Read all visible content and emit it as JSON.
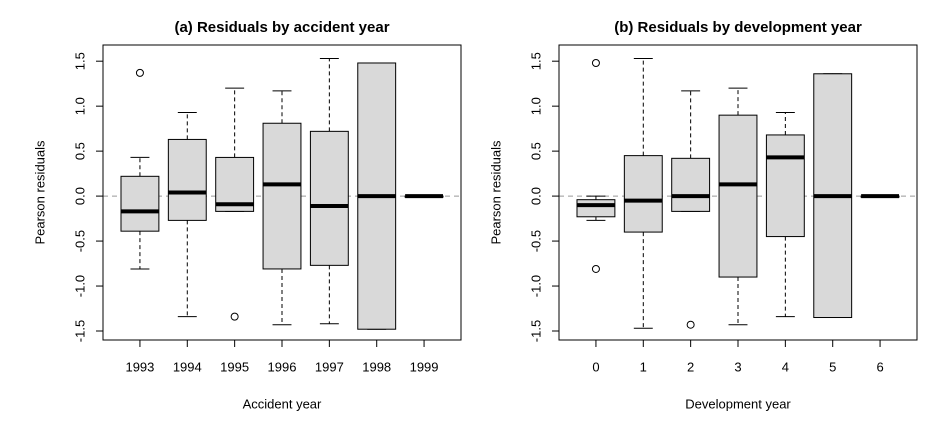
{
  "chart_data": [
    {
      "type": "boxplot",
      "title": "(a) Residuals by accident year",
      "xlabel": "Accident year",
      "ylabel": "Pearson residuals",
      "categories": [
        "1993",
        "1994",
        "1995",
        "1996",
        "1997",
        "1998",
        "1999"
      ],
      "boxes": [
        {
          "whisker_low": -0.81,
          "q1": -0.39,
          "median": -0.17,
          "q3": 0.22,
          "whisker_high": 0.43,
          "outliers": [
            1.37
          ]
        },
        {
          "whisker_low": -1.34,
          "q1": -0.27,
          "median": 0.04,
          "q3": 0.63,
          "whisker_high": 0.93,
          "outliers": []
        },
        {
          "whisker_low": -0.17,
          "q1": -0.17,
          "median": -0.09,
          "q3": 0.43,
          "whisker_high": 1.2,
          "outliers": [
            -1.34
          ]
        },
        {
          "whisker_low": -1.43,
          "q1": -0.81,
          "median": 0.13,
          "q3": 0.81,
          "whisker_high": 1.17,
          "outliers": []
        },
        {
          "whisker_low": -1.42,
          "q1": -0.77,
          "median": -0.11,
          "q3": 0.72,
          "whisker_high": 1.53,
          "outliers": []
        },
        {
          "whisker_low": -1.48,
          "q1": -1.48,
          "median": 0,
          "q3": 1.48,
          "whisker_high": 1.48,
          "outliers": []
        },
        {
          "whisker_low": 0,
          "q1": 0,
          "median": 0,
          "q3": 0,
          "whisker_high": 0,
          "outliers": []
        }
      ],
      "color": "#d9d9d9",
      "ylim": [
        -1.6,
        1.68
      ],
      "yticks": [
        -1.5,
        {
          "value": -1.0,
          "label": "-1.0"
        },
        -0.5,
        {
          "value": 0,
          "label": "0.0"
        },
        0.5,
        {
          "value": 1.0,
          "label": "1.0"
        },
        1.5
      ],
      "hline": 0
    },
    {
      "type": "boxplot",
      "title": "(b) Residuals by development year",
      "xlabel": "Development year",
      "ylabel": "Pearson residuals",
      "categories": [
        "0",
        "1",
        "2",
        "3",
        "4",
        "5",
        "6"
      ],
      "boxes": [
        {
          "whisker_low": -0.27,
          "q1": -0.23,
          "median": -0.1,
          "q3": -0.04,
          "whisker_high": 0,
          "outliers": [
            1.48,
            -0.81
          ]
        },
        {
          "whisker_low": -1.47,
          "q1": -0.4,
          "median": -0.05,
          "q3": 0.45,
          "whisker_high": 1.53,
          "outliers": []
        },
        {
          "whisker_low": -0.17,
          "q1": -0.17,
          "median": 0,
          "q3": 0.42,
          "whisker_high": 1.17,
          "outliers": [
            -1.43
          ]
        },
        {
          "whisker_low": -1.43,
          "q1": -0.9,
          "median": 0.13,
          "q3": 0.9,
          "whisker_high": 1.2,
          "outliers": []
        },
        {
          "whisker_low": -1.34,
          "q1": -0.45,
          "median": 0.43,
          "q3": 0.68,
          "whisker_high": 0.93,
          "outliers": []
        },
        {
          "whisker_low": -1.35,
          "q1": -1.35,
          "median": 0,
          "q3": 1.36,
          "whisker_high": 1.36,
          "outliers": []
        },
        {
          "whisker_low": 0,
          "q1": 0,
          "median": 0,
          "q3": 0,
          "whisker_high": 0,
          "outliers": []
        }
      ],
      "color": "#d9d9d9",
      "ylim": [
        -1.6,
        1.68
      ],
      "yticks": [
        -1.5,
        {
          "value": -1.0,
          "label": "-1.0"
        },
        -0.5,
        {
          "value": 0,
          "label": "0.0"
        },
        0.5,
        {
          "value": 1.0,
          "label": "1.0"
        },
        1.5
      ],
      "hline": 0
    }
  ]
}
